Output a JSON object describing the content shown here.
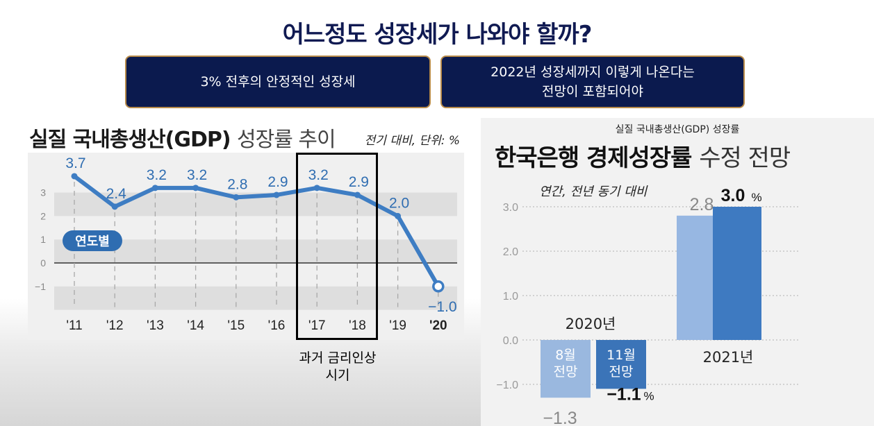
{
  "title": "어느정도 성장세가 나와야 할까?",
  "callouts": [
    {
      "lines": [
        "3% 전후의 안정적인 성장세"
      ]
    },
    {
      "lines": [
        "2022년 성장세까지 이렇게 나온다는",
        "전망이 포함되어야"
      ]
    }
  ],
  "highlight_label": [
    "과거 금리인상",
    "시기"
  ],
  "colors": {
    "navy": "#0b1a4e",
    "gold": "#b88b4a",
    "line": "#3e7dc3",
    "bar_light": "#97b7e2",
    "bar_dark": "#3e7ac1",
    "neg_light": "#9ab8df",
    "neg_dark": "#3b74b8"
  },
  "chart_data": [
    {
      "type": "line",
      "title_bold": "실질 국내총생산(GDP)",
      "title_light": "성장률 추이",
      "unit_note": "전기 대비, 단위: %",
      "badge": "연도별",
      "categories": [
        "'11",
        "'12",
        "'13",
        "'14",
        "'15",
        "'16",
        "'17",
        "'18",
        "'19",
        "'20"
      ],
      "series": [
        {
          "values": [
            3.7,
            2.4,
            3.2,
            3.2,
            2.8,
            2.9,
            3.2,
            2.9,
            2.0,
            -1.0
          ],
          "labels": [
            "3.7",
            "2.4",
            "3.2",
            "3.2",
            "2.8",
            "2.9",
            "3.2",
            "2.9",
            "2.0",
            "−1.0"
          ]
        }
      ],
      "yticks": [
        3,
        2,
        1,
        0,
        -1
      ],
      "ytick_labels": [
        "3",
        "2",
        "1",
        "0",
        "−1"
      ],
      "ylim": [
        -2,
        4.4
      ],
      "grid": "alternating bands",
      "highlight": [
        "'17",
        "'18"
      ]
    },
    {
      "type": "bar",
      "title_small": "실질 국내총생산(GDP) 성장률",
      "title_bold": "한국은행 경제성장률",
      "title_light": "수정 전망",
      "subtitle": "연간, 전년 동기 대비",
      "yticks": [
        3.0,
        2.0,
        1.0,
        0.0,
        -1.0
      ],
      "ytick_labels": [
        "3.0",
        "2.0",
        "1.0",
        "0.0",
        "−1.0"
      ],
      "ylim": [
        -1.6,
        3.4
      ],
      "groups": [
        {
          "name": "2020년",
          "bars": [
            {
              "label": [
                "8월",
                "전망"
              ],
              "value": -1.3,
              "value_label": "−1.3",
              "style": "light"
            },
            {
              "label": [
                "11월",
                "전망"
              ],
              "value": -1.1,
              "value_label": "−1.1",
              "value_suffix": "%",
              "style": "dark"
            }
          ]
        },
        {
          "name": "2021년",
          "bars": [
            {
              "value": 2.8,
              "value_label": "2.8",
              "style": "light"
            },
            {
              "value": 3.0,
              "value_label": "3.0",
              "value_suffix": "%",
              "style": "dark"
            }
          ]
        }
      ]
    }
  ]
}
